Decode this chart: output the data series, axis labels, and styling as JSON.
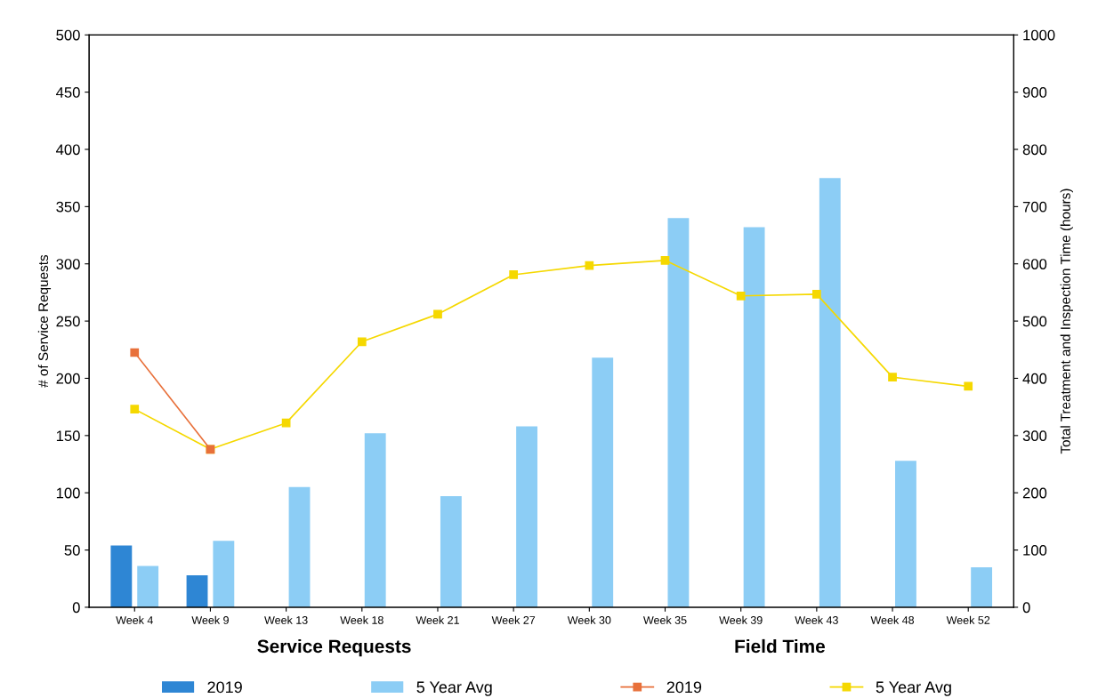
{
  "chart_data": {
    "type": "bar",
    "ylabel": "# of Service Requests",
    "y2label": "Total Treatment and Inspection Time (hours)",
    "categories": [
      "Week 4",
      "Week 9",
      "Week 13",
      "Week 18",
      "Week 21",
      "Week 27",
      "Week 30",
      "Week 35",
      "Week 39",
      "Week 43",
      "Week 48",
      "Week 52"
    ],
    "series": [
      {
        "name": "2019",
        "color": "#2e86d4",
        "values": [
          54,
          28,
          null,
          null,
          null,
          null,
          null,
          null,
          null,
          null,
          null,
          null
        ]
      },
      {
        "name": "5 Year Avg",
        "color": "#8ccdf5",
        "values": [
          36,
          58,
          105,
          152,
          97,
          158,
          218,
          340,
          332,
          375,
          128,
          35
        ]
      },
      {
        "name": "2019",
        "type": "line",
        "axis": "y2",
        "color": "#e8703a",
        "values": [
          445,
          276,
          null,
          null,
          null,
          null,
          null,
          null,
          null,
          null,
          null,
          null
        ]
      },
      {
        "name": "5 Year Avg",
        "type": "line",
        "axis": "y2",
        "color": "#f5d800",
        "values": [
          346,
          276,
          322,
          464,
          512,
          581,
          597,
          606,
          544,
          547,
          402,
          386
        ]
      }
    ],
    "ylim": [
      0,
      500
    ],
    "yticks": [
      0,
      50,
      100,
      150,
      200,
      250,
      300,
      350,
      400,
      450,
      500
    ],
    "y2lim": [
      0,
      1000
    ],
    "y2ticks": [
      0,
      100,
      200,
      300,
      400,
      500,
      600,
      700,
      800,
      900,
      1000
    ],
    "annotations": [
      "Service Requests",
      "Field Time"
    ],
    "legend": "bottom",
    "grid": false,
    "marker": "square",
    "line_style": "solid"
  }
}
